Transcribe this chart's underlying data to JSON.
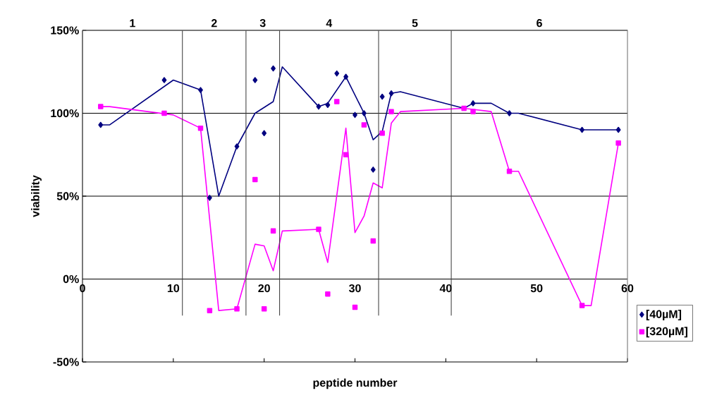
{
  "chart_data": {
    "type": "scatter",
    "xlabel": "peptide number",
    "ylabel": "viability",
    "xlim": [
      0,
      60
    ],
    "xticks": [
      0,
      10,
      20,
      30,
      40,
      50,
      60
    ],
    "annotations": [
      "1",
      "2",
      "3",
      "4",
      "5",
      "6"
    ],
    "ylim": [
      -50,
      150
    ],
    "yticks": [
      {
        "value": -50,
        "label": "-50%"
      },
      {
        "value": 0,
        "label": "0%"
      },
      {
        "value": 50,
        "label": "50%"
      },
      {
        "value": 100,
        "label": "100%"
      },
      {
        "value": 150,
        "label": "150%"
      }
    ],
    "grid": "y",
    "legend": "bottom right",
    "ref_lines": [
      {
        "axis": "x",
        "value": 11
      },
      {
        "axis": "x",
        "value": 18
      },
      {
        "axis": "x",
        "value": 21.7
      },
      {
        "axis": "x",
        "value": 32.6
      },
      {
        "axis": "x",
        "value": 40.6
      }
    ],
    "series": [
      {
        "name": "[40µM]",
        "marker": "diamond",
        "color": "#000080",
        "x": [
          2,
          9,
          13,
          14,
          17,
          19,
          20,
          21,
          26,
          27,
          28,
          29,
          30,
          31,
          32,
          33,
          34,
          43,
          47,
          55,
          59
        ],
        "values": [
          93,
          120,
          114,
          49,
          80,
          120,
          88,
          127,
          104,
          105,
          124,
          122,
          99,
          100,
          66,
          110,
          112,
          106,
          100,
          90,
          90
        ]
      },
      {
        "name": "[320µM]",
        "marker": "square",
        "color": "#ff00ff",
        "x": [
          2,
          9,
          13,
          14,
          17,
          19,
          20,
          21,
          26,
          27,
          28,
          29,
          30,
          31,
          32,
          33,
          34,
          42,
          43,
          47,
          55,
          59
        ],
        "values": [
          104,
          100,
          91,
          -19,
          -18,
          60,
          -18,
          29,
          30,
          -9,
          107,
          75,
          -17,
          93,
          23,
          88,
          101,
          103,
          101,
          65,
          -16,
          82
        ]
      },
      {
        "type": "line",
        "color": "#000080",
        "x": [
          2,
          3,
          10,
          13,
          15,
          17,
          19,
          21,
          22,
          26,
          27,
          29,
          31,
          32,
          33,
          34,
          35,
          42,
          43,
          45,
          47,
          48,
          55,
          59
        ],
        "values": [
          93,
          93,
          120,
          114,
          50,
          80,
          100,
          107,
          128,
          104,
          106,
          122,
          100,
          84,
          89,
          112,
          113,
          103,
          106,
          106,
          100,
          100,
          90,
          90
        ]
      },
      {
        "type": "line",
        "color": "#ff00ff",
        "x": [
          2,
          3,
          10,
          13,
          15,
          17,
          19,
          20,
          21,
          22,
          26,
          27,
          29,
          30,
          31,
          32,
          33,
          34,
          35,
          42,
          45,
          47,
          48,
          55,
          56,
          59
        ],
        "values": [
          104,
          104,
          99,
          91,
          -19,
          -18,
          21,
          20,
          5,
          29,
          30,
          10,
          91,
          28,
          38,
          58,
          55,
          94,
          101,
          103,
          101,
          65,
          65,
          -16,
          -16,
          82
        ]
      }
    ]
  }
}
